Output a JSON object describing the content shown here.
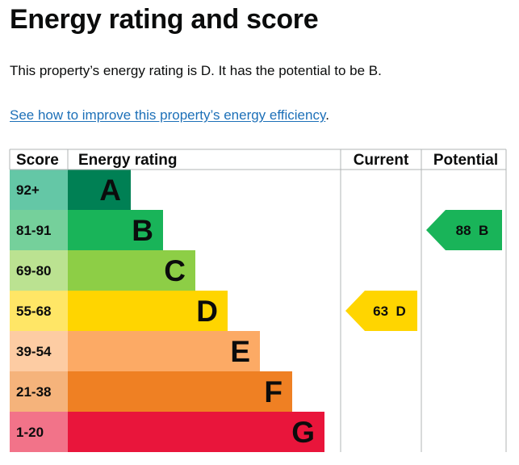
{
  "page": {
    "title": "Energy rating and score",
    "summary": "This property’s energy rating is D. It has the potential to be B.",
    "improve_link": "See how to improve this property’s energy efficiency",
    "improve_link_suffix": "."
  },
  "table": {
    "headers": {
      "score": "Score",
      "rating": "Energy rating",
      "current": "Current",
      "potential": "Potential"
    },
    "bands": [
      {
        "letter": "A",
        "range": "92+",
        "color": "#008054",
        "score_bg": "#64c7a6",
        "extent": 1
      },
      {
        "letter": "B",
        "range": "81-91",
        "color": "#19b459",
        "score_bg": "#75d09b",
        "extent": 2
      },
      {
        "letter": "C",
        "range": "69-80",
        "color": "#8dce46",
        "score_bg": "#bbe291",
        "extent": 3
      },
      {
        "letter": "D",
        "range": "55-68",
        "color": "#ffd500",
        "score_bg": "#ffe666",
        "extent": 4
      },
      {
        "letter": "E",
        "range": "39-54",
        "color": "#fcaa65",
        "score_bg": "#fdcca3",
        "extent": 5
      },
      {
        "letter": "F",
        "range": "21-38",
        "color": "#ef8023",
        "score_bg": "#f5b37b",
        "extent": 6
      },
      {
        "letter": "G",
        "range": "1-20",
        "color": "#e9153b",
        "score_bg": "#f27389",
        "extent": 7
      }
    ],
    "current": {
      "score": 63,
      "letter": "D",
      "color": "#ffd500",
      "label": "63  D"
    },
    "potential": {
      "score": 88,
      "letter": "B",
      "color": "#19b459",
      "label": "88  B"
    }
  }
}
